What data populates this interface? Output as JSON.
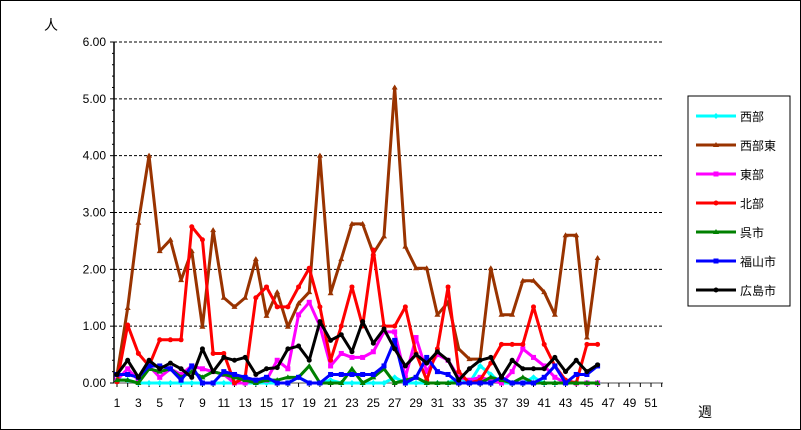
{
  "chart_data": {
    "type": "line",
    "ylabel": "人",
    "xlabel": "週",
    "ylim": [
      0,
      6
    ],
    "yticks": [
      "0.00",
      "1.00",
      "2.00",
      "3.00",
      "4.00",
      "5.00",
      "6.00"
    ],
    "xlim": [
      1,
      52
    ],
    "xticks": [
      "1",
      "3",
      "5",
      "7",
      "9",
      "11",
      "13",
      "15",
      "17",
      "19",
      "21",
      "23",
      "25",
      "27",
      "29",
      "31",
      "33",
      "35",
      "37",
      "39",
      "41",
      "43",
      "45",
      "47",
      "49",
      "51"
    ],
    "grid": "horizontal dashed",
    "legend_position": "right",
    "x": [
      1,
      2,
      3,
      4,
      5,
      6,
      7,
      8,
      9,
      10,
      11,
      12,
      13,
      14,
      15,
      16,
      17,
      18,
      19,
      20,
      21,
      22,
      23,
      24,
      25,
      26,
      27,
      28,
      29,
      30,
      31,
      32,
      33,
      34,
      35,
      36,
      37,
      38,
      39,
      40,
      41,
      42,
      43,
      44,
      45,
      46
    ],
    "series": [
      {
        "name": "西部",
        "color": "#00FFFF",
        "marker": "diamond",
        "values": [
          0.05,
          0.05,
          0,
          0,
          0,
          0,
          0,
          0,
          0,
          0,
          0,
          0,
          0,
          0,
          0,
          0,
          0,
          0.1,
          0,
          0,
          0.05,
          0,
          0,
          0,
          0,
          0,
          0.1,
          0,
          0,
          0,
          0,
          0,
          0.1,
          0,
          0.3,
          0.15,
          0,
          0,
          0,
          0.1,
          0,
          0,
          0,
          0,
          0,
          0
        ]
      },
      {
        "name": "西部東",
        "color": "#993300",
        "marker": "triangle",
        "values": [
          0.14,
          1.32,
          2.82,
          4.0,
          2.32,
          2.52,
          1.81,
          2.32,
          0.99,
          2.69,
          1.5,
          1.34,
          1.5,
          2.18,
          1.18,
          1.6,
          0.99,
          1.4,
          1.6,
          4.0,
          1.58,
          2.18,
          2.8,
          2.8,
          2.28,
          2.58,
          5.2,
          2.4,
          2.02,
          2.02,
          1.2,
          1.42,
          0.6,
          0.42,
          0.42,
          2.02,
          1.2,
          1.2,
          1.8,
          1.8,
          1.6,
          1.2,
          2.6,
          2.6,
          0.8,
          2.2
        ]
      },
      {
        "name": "東部",
        "color": "#FF00FF",
        "marker": "square",
        "values": [
          0.05,
          0.25,
          0.05,
          0.3,
          0.1,
          0.25,
          0.15,
          0.3,
          0.25,
          0.2,
          0.15,
          0,
          0,
          0.05,
          0.05,
          0.4,
          0.25,
          1.2,
          1.42,
          1.0,
          0.3,
          0.52,
          0.45,
          0.45,
          0.55,
          0.9,
          0.9,
          0.1,
          0.8,
          0.2,
          0.5,
          0.4,
          0.1,
          0.05,
          0.1,
          0.05,
          0,
          0.2,
          0.6,
          0.45,
          0.3,
          0.1,
          0,
          0,
          0,
          0
        ]
      },
      {
        "name": "北部",
        "color": "#FF0000",
        "marker": "circle",
        "values": [
          0.02,
          1.02,
          0.52,
          0.3,
          0.76,
          0.76,
          0.76,
          2.75,
          2.52,
          0.52,
          0.52,
          0,
          0.1,
          1.5,
          1.69,
          1.34,
          1.34,
          1.69,
          2.02,
          1.34,
          0.4,
          1.0,
          1.69,
          1.0,
          2.34,
          1.0,
          1.0,
          1.34,
          0.52,
          0.05,
          0.6,
          1.69,
          0.2,
          0,
          0.05,
          0.35,
          0.68,
          0.68,
          0.68,
          1.34,
          0.68,
          0.3,
          0.05,
          0,
          0.68,
          0.68
        ]
      },
      {
        "name": "呉市",
        "color": "#008000",
        "marker": "triangle",
        "values": [
          0.05,
          0.05,
          0,
          0.25,
          0.2,
          0.25,
          0.1,
          0.2,
          0.1,
          0.2,
          0.15,
          0.1,
          0.05,
          0,
          0.05,
          0.05,
          0.1,
          0.1,
          0.3,
          0,
          0,
          0,
          0.25,
          0,
          0.1,
          0.25,
          0,
          0.05,
          0.1,
          0,
          0,
          0,
          0,
          0,
          0,
          0.1,
          0.05,
          0,
          0.1,
          0,
          0,
          0,
          0,
          0,
          0,
          0
        ]
      },
      {
        "name": "福山市",
        "color": "#0000FF",
        "marker": "square",
        "values": [
          0.15,
          0.15,
          0.1,
          0.3,
          0.3,
          0.25,
          0.05,
          0.3,
          0,
          0,
          0.2,
          0.15,
          0.1,
          0.05,
          0.1,
          0,
          0,
          0.1,
          0,
          0,
          0.15,
          0.15,
          0.15,
          0.15,
          0.15,
          0.3,
          0.75,
          0,
          0.1,
          0.45,
          0.2,
          0.15,
          0,
          0,
          0,
          0,
          0.1,
          0,
          0,
          0,
          0.1,
          0.3,
          0,
          0.15,
          0.15,
          0.3
        ]
      },
      {
        "name": "広島市",
        "color": "#000000",
        "marker": "circle",
        "values": [
          0.15,
          0.4,
          0.1,
          0.4,
          0.25,
          0.35,
          0.25,
          0.1,
          0.6,
          0.2,
          0.45,
          0.4,
          0.45,
          0.15,
          0.25,
          0.27,
          0.6,
          0.65,
          0.4,
          1.08,
          0.75,
          0.85,
          0.55,
          1.08,
          0.7,
          0.95,
          0.6,
          0.3,
          0.5,
          0.35,
          0.55,
          0.4,
          0.05,
          0.25,
          0.4,
          0.45,
          0.1,
          0.4,
          0.25,
          0.25,
          0.25,
          0.45,
          0.2,
          0.4,
          0.2,
          0.32
        ]
      }
    ]
  }
}
